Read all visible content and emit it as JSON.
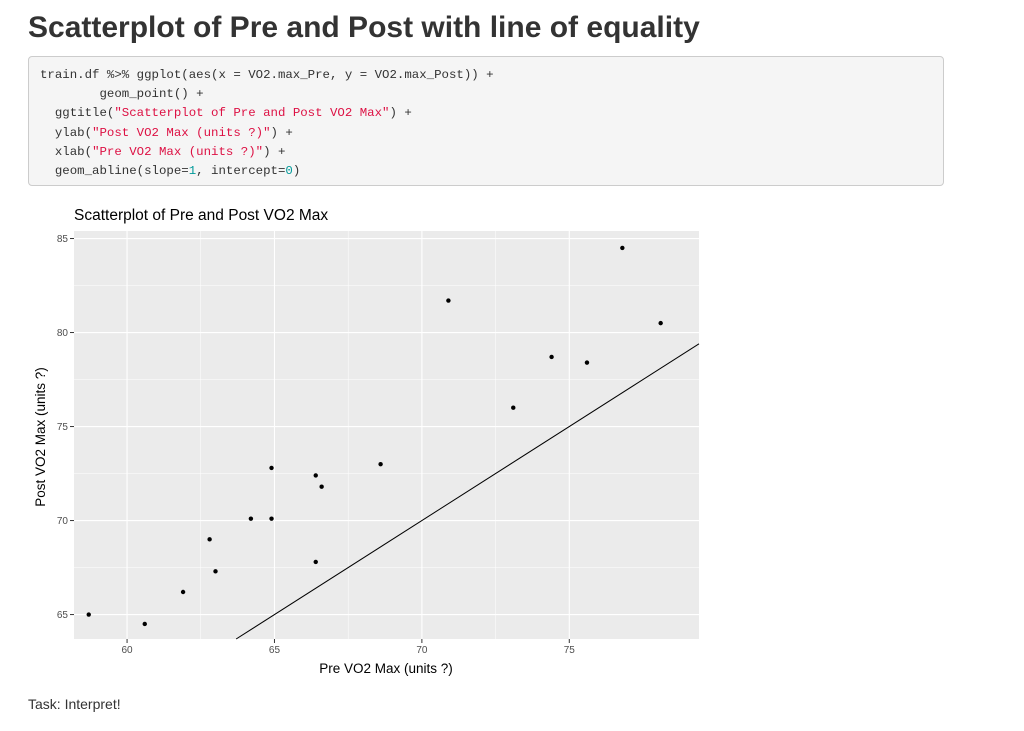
{
  "page": {
    "heading": "Scatterplot of Pre and Post with line of equality",
    "task": "Task: Interpret!"
  },
  "code": {
    "lines": [
      [
        {
          "t": "train.df %>% ggplot(aes(x = VO2.max_Pre, y = VO2.max_Post)) +",
          "c": ""
        }
      ],
      [
        {
          "t": "        geom_point() +",
          "c": ""
        }
      ],
      [
        {
          "t": "  ggtitle(",
          "c": ""
        },
        {
          "t": "\"Scatterplot of Pre and Post VO2 Max\"",
          "c": "str"
        },
        {
          "t": ") +",
          "c": ""
        }
      ],
      [
        {
          "t": "  ylab(",
          "c": ""
        },
        {
          "t": "\"Post VO2 Max (units ?)\"",
          "c": "str"
        },
        {
          "t": ") +",
          "c": ""
        }
      ],
      [
        {
          "t": "  xlab(",
          "c": ""
        },
        {
          "t": "\"Pre VO2 Max (units ?)\"",
          "c": "str"
        },
        {
          "t": ") +",
          "c": ""
        }
      ],
      [
        {
          "t": "  geom_abline(slope=",
          "c": ""
        },
        {
          "t": "1",
          "c": "num"
        },
        {
          "t": ", intercept=",
          "c": ""
        },
        {
          "t": "0",
          "c": "num"
        },
        {
          "t": ")",
          "c": ""
        }
      ]
    ]
  },
  "colors": {
    "panel_background": "#ebebeb",
    "gridline": "#ffffff",
    "point": "#000000",
    "tick_text": "#4d4d4d",
    "string_literal": "#dd1144",
    "numeric_literal": "#009999"
  },
  "chart_data": {
    "type": "scatter",
    "title": "Scatterplot of Pre and Post VO2 Max",
    "xlabel": "Pre VO2 Max (units ?)",
    "ylabel": "Post VO2 Max (units ?)",
    "xlim": [
      58.2,
      79.4
    ],
    "ylim": [
      63.7,
      85.4
    ],
    "x_ticks": [
      60,
      65,
      70,
      75
    ],
    "y_ticks": [
      65,
      70,
      75,
      80,
      85
    ],
    "grid": true,
    "reference_line": {
      "slope": 1,
      "intercept": 0
    },
    "points": [
      {
        "x": 58.7,
        "y": 65.0
      },
      {
        "x": 60.6,
        "y": 64.5
      },
      {
        "x": 61.9,
        "y": 66.2
      },
      {
        "x": 62.8,
        "y": 69.0
      },
      {
        "x": 63.0,
        "y": 67.3
      },
      {
        "x": 64.2,
        "y": 70.1
      },
      {
        "x": 64.9,
        "y": 72.8
      },
      {
        "x": 64.9,
        "y": 70.1
      },
      {
        "x": 66.4,
        "y": 72.4
      },
      {
        "x": 66.6,
        "y": 71.8
      },
      {
        "x": 66.4,
        "y": 67.8
      },
      {
        "x": 68.6,
        "y": 73.0
      },
      {
        "x": 70.9,
        "y": 81.7
      },
      {
        "x": 73.1,
        "y": 76.0
      },
      {
        "x": 74.4,
        "y": 78.7
      },
      {
        "x": 75.6,
        "y": 78.4
      },
      {
        "x": 76.8,
        "y": 84.5
      },
      {
        "x": 78.1,
        "y": 80.5
      }
    ]
  }
}
